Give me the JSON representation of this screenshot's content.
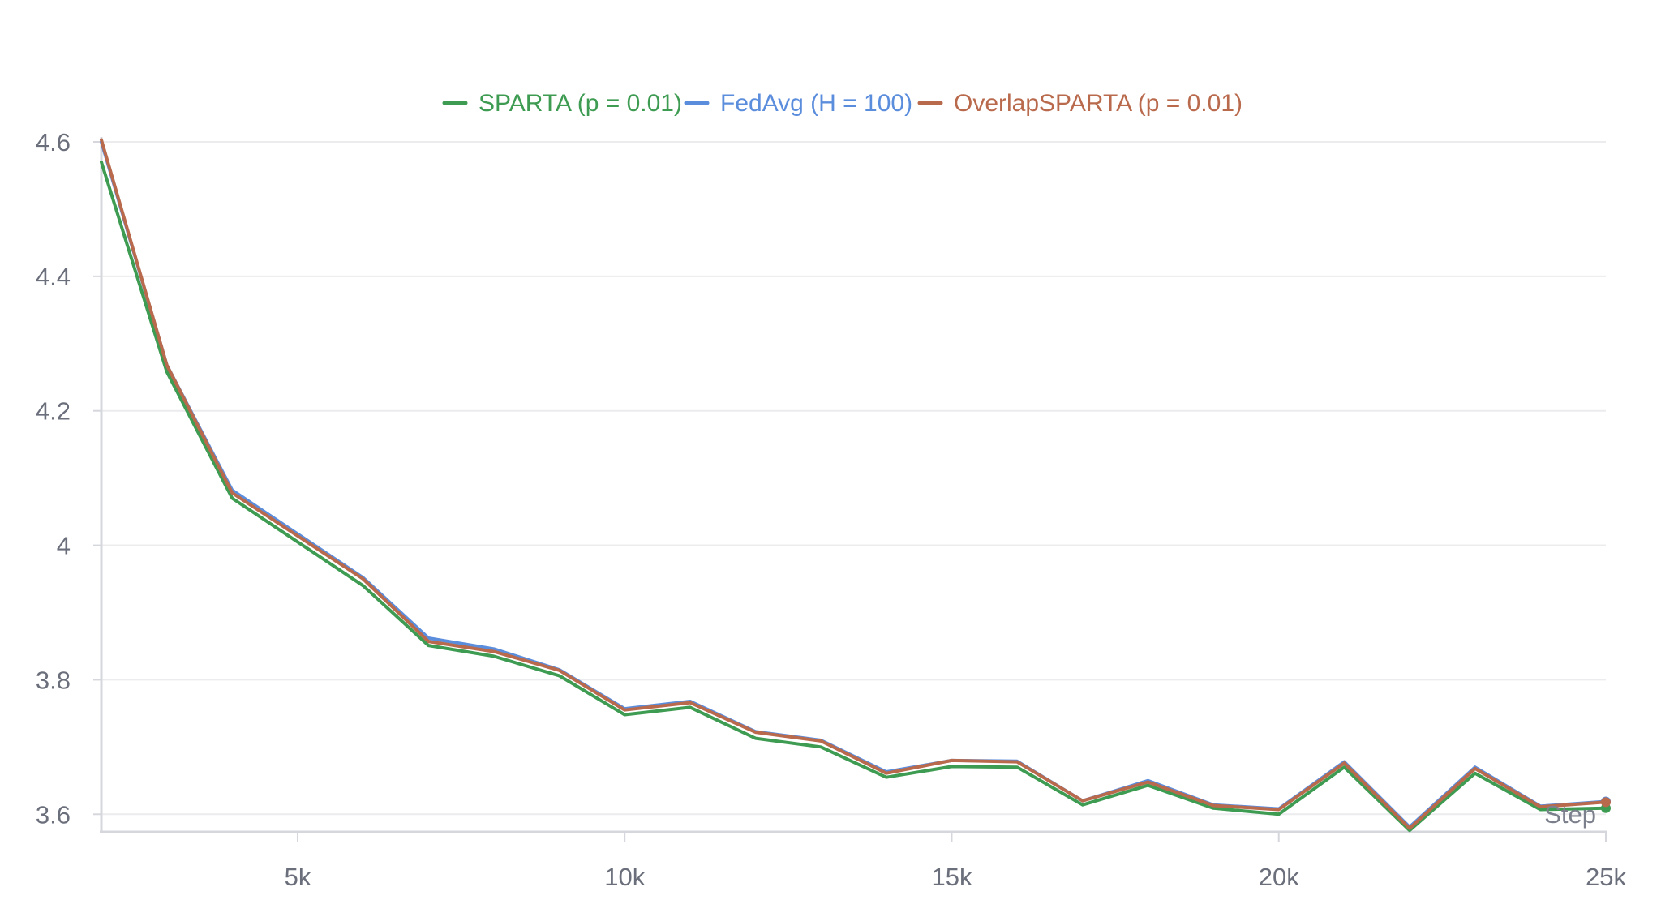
{
  "chart_data": {
    "type": "line",
    "title": "",
    "xlabel": "Step",
    "ylabel": "",
    "xlim": [
      2000,
      25000
    ],
    "ylim": [
      3.575,
      4.6
    ],
    "x_ticks": [
      5000,
      10000,
      15000,
      20000,
      25000
    ],
    "x_tick_labels": [
      "5k",
      "10k",
      "15k",
      "20k",
      "25k"
    ],
    "y_ticks": [
      3.6,
      3.8,
      4.0,
      4.2,
      4.4,
      4.6
    ],
    "y_tick_labels": [
      "3.6",
      "3.8",
      "4",
      "4.2",
      "4.4",
      "4.6"
    ],
    "grid": true,
    "legend_position": "top-center",
    "x": [
      2000,
      3000,
      4000,
      5000,
      6000,
      7000,
      8000,
      9000,
      10000,
      11000,
      12000,
      13000,
      14000,
      15000,
      16000,
      17000,
      18000,
      19000,
      20000,
      21000,
      22000,
      23000,
      24000,
      25000
    ],
    "series": [
      {
        "name": "SPARTA (p = 0.01)",
        "color": "#3e9b52",
        "values": [
          4.57,
          4.258,
          4.07,
          4.005,
          3.94,
          3.851,
          3.835,
          3.806,
          3.748,
          3.759,
          3.713,
          3.7,
          3.655,
          3.671,
          3.67,
          3.614,
          3.643,
          3.609,
          3.6,
          3.67,
          3.576,
          3.661,
          3.607,
          3.609
        ]
      },
      {
        "name": "FedAvg (H = 100)",
        "color": "#5b8ddd",
        "values": [
          4.6,
          4.268,
          4.082,
          4.017,
          3.952,
          3.862,
          3.846,
          3.815,
          3.757,
          3.768,
          3.723,
          3.71,
          3.663,
          3.68,
          3.679,
          3.62,
          3.65,
          3.614,
          3.608,
          3.678,
          3.581,
          3.67,
          3.612,
          3.619
        ]
      },
      {
        "name": "OverlapSPARTA (p = 0.01)",
        "color": "#b96a4d",
        "values": [
          4.603,
          4.268,
          4.078,
          4.014,
          3.95,
          3.857,
          3.842,
          3.814,
          3.755,
          3.766,
          3.722,
          3.709,
          3.661,
          3.68,
          3.678,
          3.62,
          3.648,
          3.613,
          3.607,
          3.676,
          3.579,
          3.668,
          3.611,
          3.618
        ]
      }
    ]
  }
}
